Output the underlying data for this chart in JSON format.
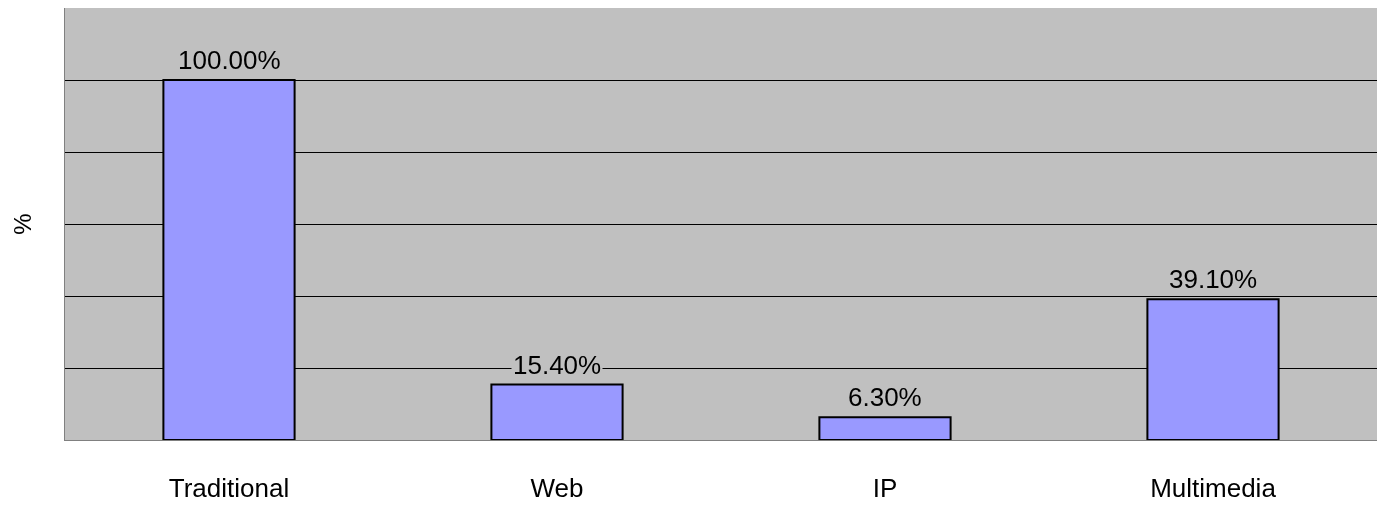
{
  "chart_data": {
    "type": "bar",
    "ylabel": "%",
    "categories": [
      "Traditional",
      "Web",
      "IP",
      "Multimedia"
    ],
    "values": [
      100,
      15.4,
      6.3,
      39.1
    ],
    "value_labels": [
      "100.00%",
      "15.40%",
      "6.30%",
      "39.10%"
    ],
    "color": "#9999ff",
    "ylim": [
      0,
      120
    ],
    "yticks": [
      {
        "value": 0,
        "label": null
      },
      {
        "value": 20,
        "label": null
      },
      {
        "value": 40,
        "label": null
      },
      {
        "value": 60,
        "label": null
      },
      {
        "value": 80,
        "label": null
      },
      {
        "value": 100,
        "label": null
      },
      {
        "value": 120,
        "label": null
      }
    ],
    "grid": "y",
    "tick_labels": "x",
    "legend": false
  }
}
